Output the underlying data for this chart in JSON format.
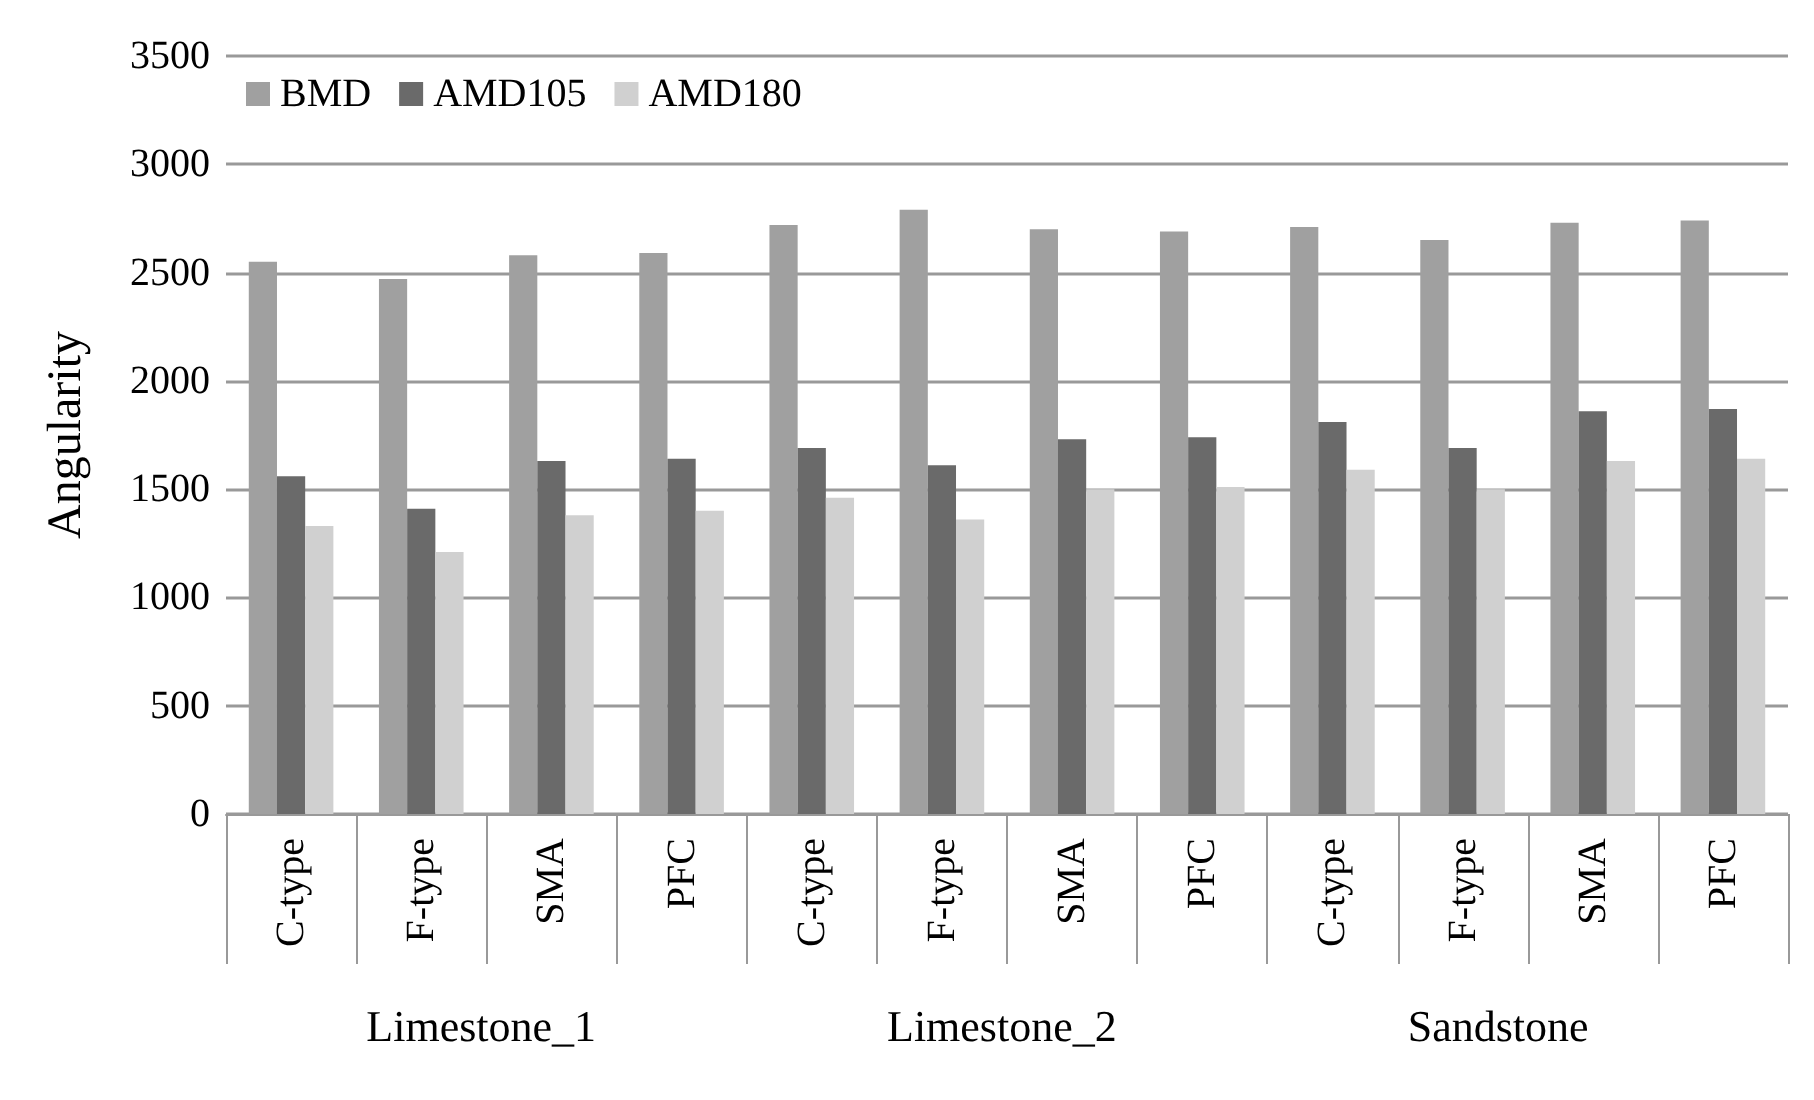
{
  "chart_data": {
    "type": "bar",
    "ylabel": "Angularity",
    "categories": [
      "C-type",
      "F-type",
      "SMA",
      "PFC",
      "C-type",
      "F-type",
      "SMA",
      "PFC",
      "C-type",
      "F-type",
      "SMA",
      "PFC"
    ],
    "series": [
      {
        "name": "BMD",
        "color": "#a0a0a0",
        "values": [
          2550,
          2470,
          2580,
          2590,
          2720,
          2790,
          2700,
          2690,
          2710,
          2650,
          2730,
          2740
        ]
      },
      {
        "name": "AMD105",
        "color": "#6a6a6a",
        "values": [
          1560,
          1410,
          1630,
          1640,
          1690,
          1610,
          1730,
          1740,
          1810,
          1690,
          1860,
          1870
        ]
      },
      {
        "name": "AMD180",
        "color": "#d0d0d0",
        "values": [
          1330,
          1210,
          1380,
          1400,
          1460,
          1360,
          1500,
          1510,
          1590,
          1500,
          1630,
          1640
        ]
      }
    ],
    "annotations": [
      "Limestone_1",
      "Limestone_2",
      "Sandstone"
    ],
    "ylim": [
      0,
      3500
    ],
    "yticks": [
      0,
      500,
      1000,
      1500,
      2000,
      2500,
      3000,
      3500
    ],
    "grid": "y",
    "legend": "top left"
  }
}
